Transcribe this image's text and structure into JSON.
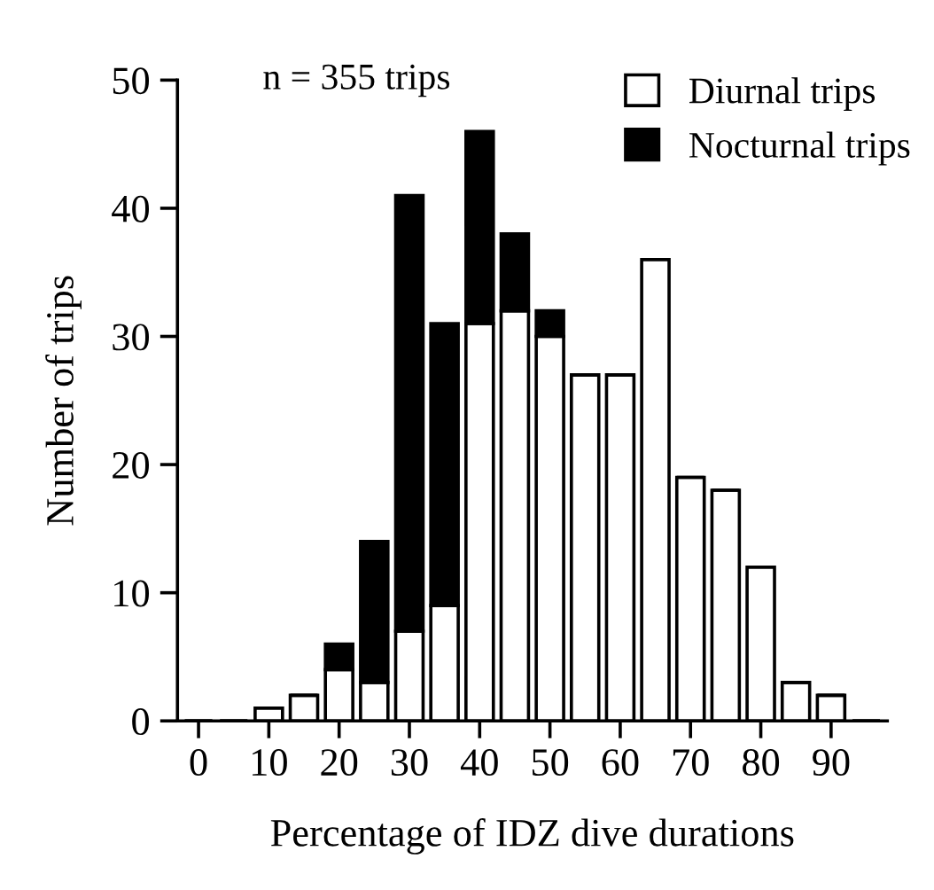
{
  "chart_data": {
    "type": "bar",
    "stacked": true,
    "xlabel": "Percentage of IDZ dive durations",
    "ylabel": "Number of trips",
    "annotations": [
      "n = 355 trips"
    ],
    "x": [
      0,
      5,
      10,
      15,
      20,
      25,
      30,
      35,
      40,
      45,
      50,
      55,
      60,
      65,
      70,
      75,
      80,
      85,
      90,
      95
    ],
    "series": [
      {
        "name": "Diurnal trips",
        "color": "#ffffff",
        "values": [
          0,
          0,
          1,
          2,
          4,
          3,
          7,
          9,
          31,
          32,
          30,
          27,
          27,
          36,
          19,
          18,
          12,
          3,
          2,
          0
        ]
      },
      {
        "name": "Nocturnal trips",
        "color": "#000000",
        "values": [
          0,
          0,
          0,
          0,
          2,
          11,
          34,
          22,
          15,
          6,
          2,
          0,
          0,
          0,
          0,
          0,
          0,
          0,
          0,
          0
        ]
      }
    ],
    "xlim": [
      -3,
      98
    ],
    "xticks": [
      0,
      10,
      20,
      30,
      40,
      50,
      60,
      70,
      80,
      90
    ],
    "ylim": [
      0,
      50
    ],
    "yticks": [
      0,
      10,
      20,
      30,
      40,
      50
    ],
    "grid": false,
    "legend": "top right"
  }
}
